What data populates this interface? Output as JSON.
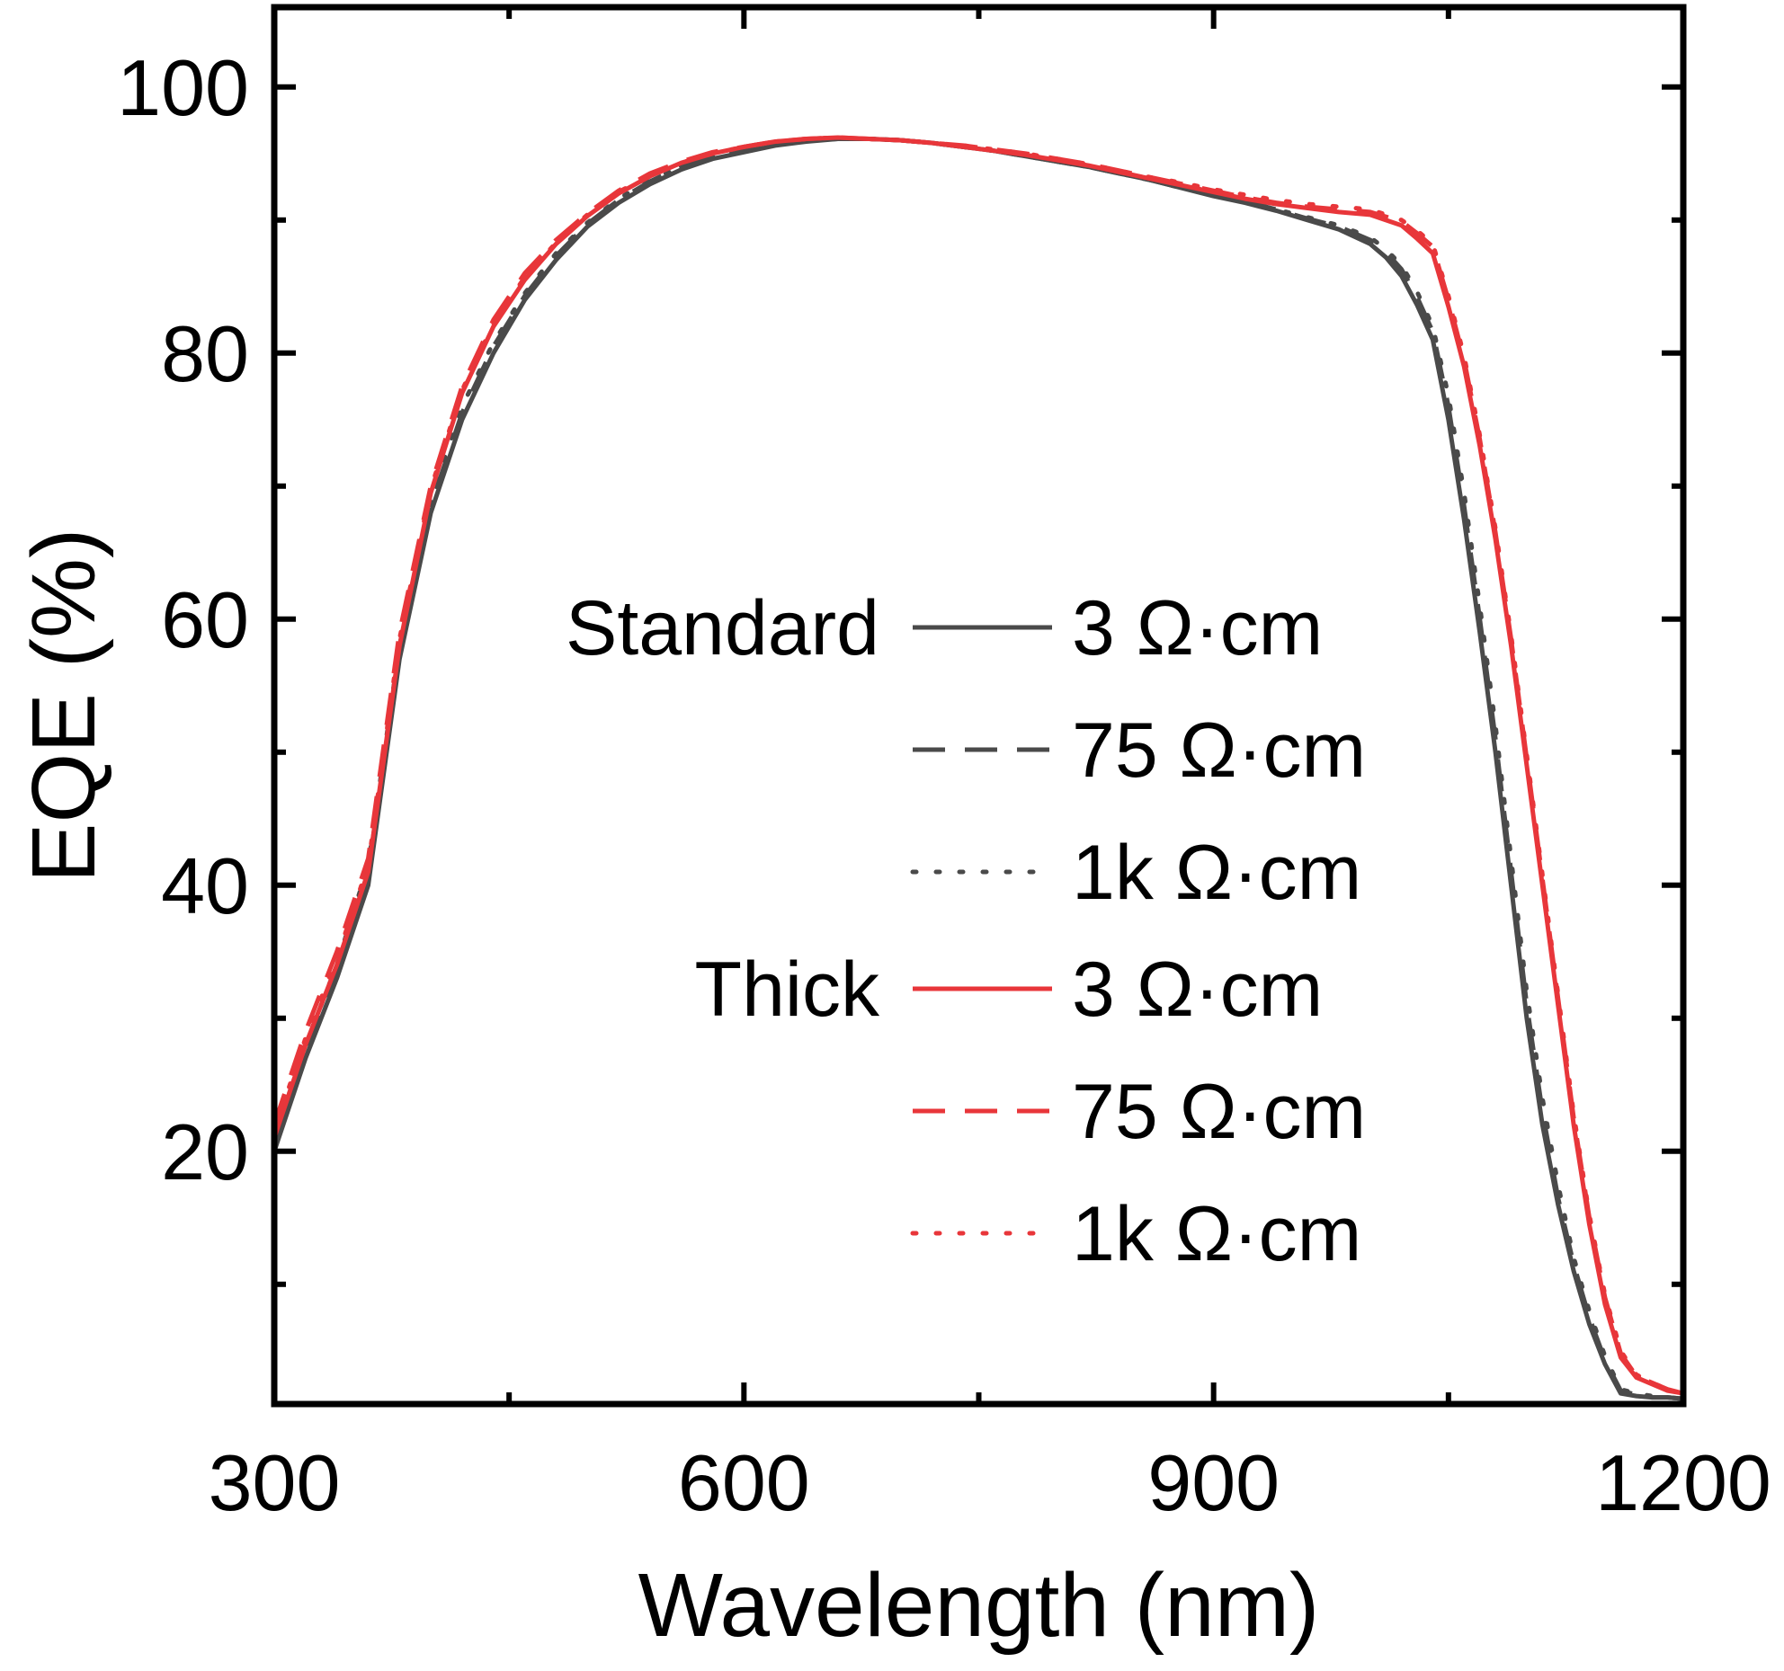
{
  "chart_data": {
    "type": "line",
    "xlabel": "Wavelength (nm)",
    "ylabel": "EQE (%)",
    "xlim": [
      300,
      1200
    ],
    "ylim": [
      1,
      106
    ],
    "xticks": [
      300,
      600,
      900,
      1200
    ],
    "xticks_minor": [
      450,
      750,
      1050
    ],
    "yticks": [
      20,
      40,
      60,
      80,
      100
    ],
    "yticks_minor": [
      10,
      30,
      50,
      70,
      90
    ],
    "grid": false,
    "legend_position": "center-right",
    "legend": {
      "groups": [
        {
          "label": "Standard",
          "entries": [
            "3 Ω·cm",
            "75 Ω·cm",
            "1k Ω·cm"
          ]
        },
        {
          "label": "Thick",
          "entries": [
            "3 Ω·cm",
            "75 Ω·cm",
            "1k Ω·cm"
          ]
        }
      ]
    },
    "colors": {
      "standard": "#4a4a4a",
      "thick": "#e8363a"
    },
    "series": [
      {
        "group": "Standard",
        "name": "3 Ω·cm",
        "style": "solid",
        "color": "#4a4a4a",
        "x": [
          300,
          320,
          340,
          360,
          380,
          400,
          420,
          440,
          460,
          480,
          500,
          520,
          540,
          560,
          580,
          600,
          620,
          640,
          660,
          680,
          700,
          720,
          740,
          760,
          780,
          800,
          820,
          840,
          860,
          880,
          900,
          920,
          940,
          960,
          980,
          1000,
          1010,
          1020,
          1030,
          1040,
          1050,
          1060,
          1070,
          1080,
          1090,
          1100,
          1110,
          1120,
          1130,
          1140,
          1150,
          1160,
          1170,
          1180,
          1190,
          1200
        ],
        "y": [
          20,
          27,
          33,
          40,
          57,
          68,
          75,
          80,
          84,
          87,
          89.5,
          91.3,
          92.7,
          93.8,
          94.6,
          95.1,
          95.6,
          95.9,
          96.1,
          96.1,
          96.0,
          95.8,
          95.5,
          95.2,
          94.8,
          94.4,
          94.0,
          93.5,
          93.0,
          92.4,
          91.8,
          91.3,
          90.7,
          90.0,
          89.3,
          88.2,
          87.2,
          85.8,
          83.6,
          81.0,
          75.0,
          67.5,
          59.0,
          50.0,
          40.0,
          30.0,
          22.0,
          16.0,
          11.0,
          7.0,
          4.0,
          1.8,
          1.6,
          1.5,
          1.5,
          1.4
        ]
      },
      {
        "group": "Standard",
        "name": "75 Ω·cm",
        "style": "dashed",
        "color": "#4a4a4a",
        "x": [
          300,
          320,
          340,
          360,
          380,
          400,
          420,
          440,
          460,
          480,
          500,
          520,
          540,
          560,
          580,
          600,
          620,
          640,
          660,
          680,
          700,
          720,
          740,
          760,
          780,
          800,
          820,
          840,
          860,
          880,
          900,
          920,
          940,
          960,
          980,
          1000,
          1010,
          1020,
          1030,
          1040,
          1050,
          1060,
          1070,
          1080,
          1090,
          1100,
          1110,
          1120,
          1130,
          1140,
          1150,
          1160,
          1170,
          1180,
          1190,
          1200
        ],
        "y": [
          20.5,
          27.5,
          33.5,
          41,
          57.5,
          68.5,
          75.5,
          80.5,
          84.3,
          87.3,
          89.7,
          91.5,
          92.9,
          94.0,
          94.7,
          95.2,
          95.7,
          96.0,
          96.1,
          96.1,
          96.0,
          95.8,
          95.5,
          95.2,
          94.8,
          94.4,
          94.0,
          93.5,
          93.0,
          92.4,
          91.9,
          91.4,
          90.8,
          90.1,
          89.5,
          88.5,
          87.6,
          86.3,
          84.2,
          81.6,
          76.0,
          68.5,
          60.0,
          51.0,
          41.0,
          31.0,
          23.0,
          16.5,
          11.5,
          7.5,
          4.3,
          2.0,
          1.7,
          1.5,
          1.5,
          1.4
        ]
      },
      {
        "group": "Standard",
        "name": "1k Ω·cm",
        "style": "dotted",
        "color": "#4a4a4a",
        "x": [
          300,
          320,
          340,
          360,
          380,
          400,
          420,
          440,
          460,
          480,
          500,
          520,
          540,
          560,
          580,
          600,
          620,
          640,
          660,
          680,
          700,
          720,
          740,
          760,
          780,
          800,
          820,
          840,
          860,
          880,
          900,
          920,
          940,
          960,
          980,
          1000,
          1010,
          1020,
          1030,
          1040,
          1050,
          1060,
          1070,
          1080,
          1090,
          1100,
          1110,
          1120,
          1130,
          1140,
          1150,
          1160,
          1170,
          1180,
          1190,
          1200
        ],
        "y": [
          21,
          28,
          34,
          41.5,
          58,
          69,
          76,
          80.8,
          84.5,
          87.5,
          89.8,
          91.6,
          93.0,
          94.0,
          94.7,
          95.2,
          95.7,
          96.0,
          96.1,
          96.1,
          96.0,
          95.8,
          95.5,
          95.2,
          94.8,
          94.4,
          94.0,
          93.5,
          93.0,
          92.4,
          91.9,
          91.4,
          90.8,
          90.2,
          89.6,
          88.7,
          87.8,
          86.6,
          84.6,
          82.0,
          76.8,
          69.5,
          61.0,
          52.0,
          42.0,
          32.0,
          24.0,
          17.5,
          12.0,
          8.0,
          4.6,
          2.1,
          1.8,
          1.6,
          1.5,
          1.4
        ]
      },
      {
        "group": "Thick",
        "name": "3 Ω·cm",
        "style": "solid",
        "color": "#e8363a",
        "x": [
          300,
          320,
          340,
          360,
          380,
          400,
          420,
          440,
          460,
          480,
          500,
          520,
          540,
          560,
          580,
          600,
          620,
          640,
          660,
          680,
          700,
          720,
          740,
          760,
          780,
          800,
          820,
          840,
          860,
          880,
          900,
          920,
          940,
          960,
          980,
          1000,
          1020,
          1030,
          1040,
          1050,
          1060,
          1070,
          1080,
          1090,
          1100,
          1110,
          1120,
          1130,
          1140,
          1150,
          1160,
          1170,
          1180,
          1190,
          1200
        ],
        "y": [
          21,
          28,
          34,
          41,
          58,
          69.5,
          77,
          82,
          85.5,
          88.2,
          90.3,
          92.0,
          93.3,
          94.3,
          95.0,
          95.5,
          95.9,
          96.1,
          96.2,
          96.1,
          96.0,
          95.8,
          95.5,
          95.2,
          94.9,
          94.5,
          94.1,
          93.6,
          93.1,
          92.6,
          92.1,
          91.6,
          91.2,
          90.9,
          90.6,
          90.4,
          89.6,
          88.6,
          87.5,
          83.5,
          79.0,
          73.0,
          66.0,
          58.0,
          49.0,
          40.0,
          31.0,
          22.0,
          14.5,
          8.5,
          4.5,
          3.0,
          2.5,
          2.0,
          1.8
        ]
      },
      {
        "group": "Thick",
        "name": "75 Ω·cm",
        "style": "dashed",
        "color": "#e8363a",
        "x": [
          300,
          320,
          340,
          360,
          380,
          400,
          420,
          440,
          460,
          480,
          500,
          520,
          540,
          560,
          580,
          600,
          620,
          640,
          660,
          680,
          700,
          720,
          740,
          760,
          780,
          800,
          820,
          840,
          860,
          880,
          900,
          920,
          940,
          960,
          980,
          1000,
          1020,
          1030,
          1040,
          1050,
          1060,
          1070,
          1080,
          1090,
          1100,
          1110,
          1120,
          1130,
          1140,
          1150,
          1160,
          1170,
          1180,
          1190,
          1200
        ],
        "y": [
          22,
          29,
          35,
          42,
          59,
          70,
          77.5,
          82.5,
          86,
          88.5,
          90.5,
          92.2,
          93.5,
          94.4,
          95.1,
          95.5,
          95.9,
          96.1,
          96.2,
          96.1,
          96.0,
          95.8,
          95.6,
          95.3,
          95.0,
          94.6,
          94.2,
          93.7,
          93.2,
          92.7,
          92.2,
          91.7,
          91.3,
          91.0,
          90.8,
          90.6,
          89.9,
          89.0,
          88.0,
          84.0,
          79.5,
          73.5,
          66.5,
          58.5,
          49.5,
          40.5,
          31.5,
          22.5,
          15.0,
          9.0,
          4.8,
          3.1,
          2.6,
          2.1,
          1.8
        ]
      },
      {
        "group": "Thick",
        "name": "1k Ω·cm",
        "style": "dotted",
        "color": "#e8363a",
        "x": [
          300,
          320,
          340,
          360,
          380,
          400,
          420,
          440,
          460,
          480,
          500,
          520,
          540,
          560,
          580,
          600,
          620,
          640,
          660,
          680,
          700,
          720,
          740,
          760,
          780,
          800,
          820,
          840,
          860,
          880,
          900,
          920,
          940,
          960,
          980,
          1000,
          1020,
          1030,
          1040,
          1050,
          1060,
          1070,
          1080,
          1090,
          1100,
          1110,
          1120,
          1130,
          1140,
          1150,
          1160,
          1170,
          1180,
          1190,
          1200
        ],
        "y": [
          21.5,
          28.5,
          34.5,
          41.5,
          58.5,
          69.8,
          77.2,
          82.2,
          85.7,
          88.3,
          90.4,
          92.1,
          93.4,
          94.3,
          95.0,
          95.5,
          95.9,
          96.1,
          96.2,
          96.1,
          96.0,
          95.8,
          95.6,
          95.3,
          95.0,
          94.6,
          94.2,
          93.7,
          93.2,
          92.8,
          92.3,
          91.9,
          91.5,
          91.2,
          91.0,
          90.8,
          90.0,
          89.2,
          88.2,
          84.3,
          79.8,
          73.8,
          66.8,
          58.8,
          49.8,
          40.8,
          31.8,
          22.8,
          15.2,
          9.2,
          5.0,
          3.2,
          2.6,
          2.1,
          1.8
        ]
      }
    ]
  }
}
